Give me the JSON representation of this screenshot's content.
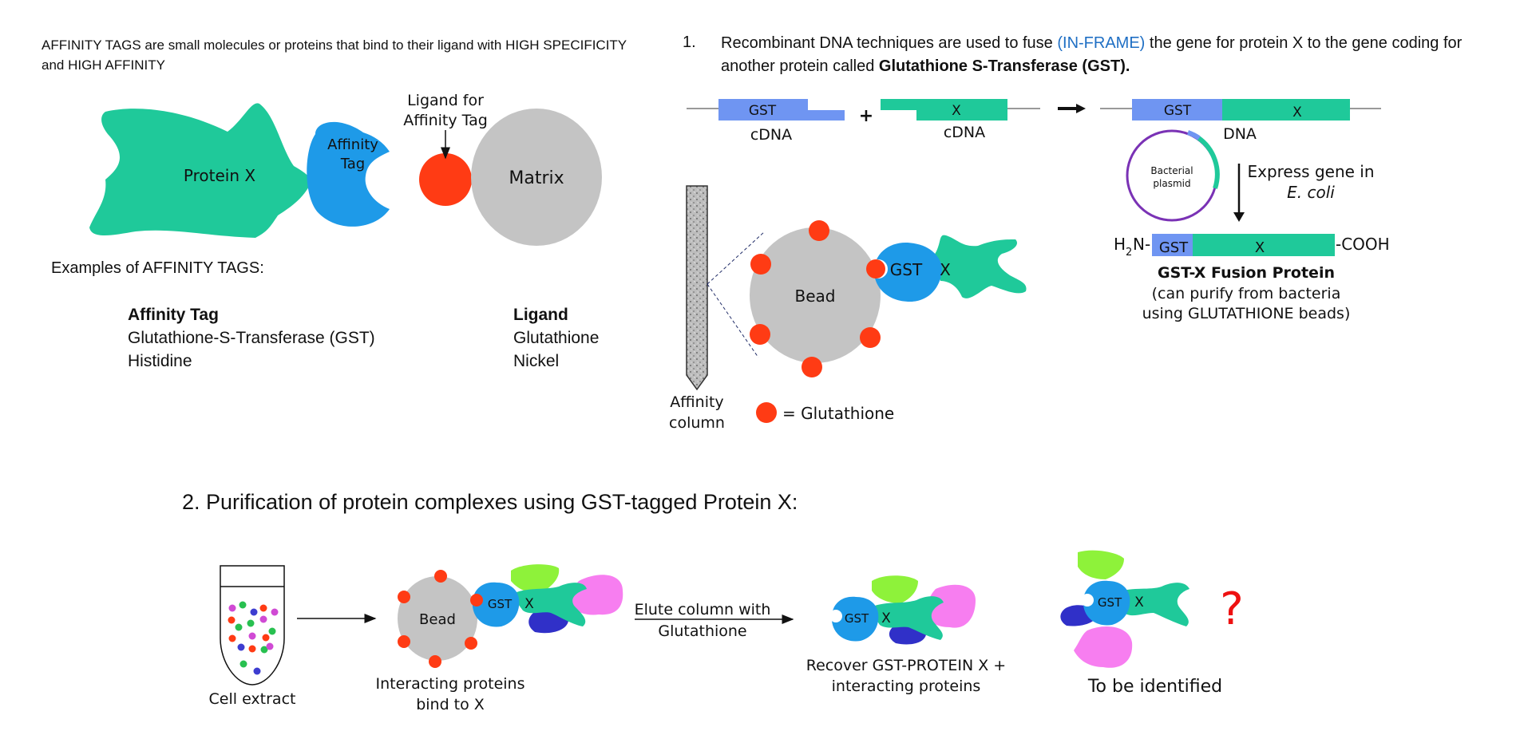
{
  "intro": {
    "text": "AFFINITY TAGS are small molecules or proteins that bind to their ligand with HIGH SPECIFICITY and HIGH AFFINITY"
  },
  "top_diagram": {
    "protein_label": "Protein X",
    "tag_label_1": "Affinity",
    "tag_label_2": "Tag",
    "ligand_label_1": "Ligand for",
    "ligand_label_2": "Affinity Tag",
    "matrix_label": "Matrix"
  },
  "examples": {
    "heading": "Examples of AFFINITY TAGS:",
    "tag_header": "Affinity Tag",
    "ligand_header": "Ligand",
    "rows": [
      {
        "tag": "Glutathione-S-Transferase (GST)",
        "ligand": "Glutathione"
      },
      {
        "tag": "Histidine",
        "ligand": "Nickel"
      }
    ]
  },
  "step1": {
    "number": "1.",
    "text_before": "Recombinant DNA techniques are used to fuse ",
    "text_highlight": "(IN-FRAME)",
    "text_after": " the gene for protein X to the gene coding for another protein called ",
    "text_bold": "Glutathione S-Transferase (GST).",
    "gst_label": "GST",
    "x_label": "X",
    "cdna_label": "cDNA",
    "plus": "+",
    "dna_label": "DNA",
    "plasmid_1": "Bacterial",
    "plasmid_2": "plasmid",
    "express_1": "Express gene in",
    "express_2": "E. coli",
    "fusion_h": "H",
    "fusion_sub": "2",
    "fusion_n": "N-",
    "fusion_cooh": "-COOH",
    "fusion_title": "GST-X Fusion Protein",
    "fusion_desc_1": "(can purify from bacteria",
    "fusion_desc_2": "using GLUTATHIONE beads)",
    "bead_label": "Bead",
    "column_label_1": "Affinity",
    "column_label_2": "column",
    "legend_label": "= Glutathione"
  },
  "step2": {
    "title": "2. Purification of protein complexes using GST-tagged Protein X:",
    "cell_extract": "Cell extract",
    "bead_label": "Bead",
    "gst_label": "GST",
    "x_label": "X",
    "interacting_1": "Interacting proteins",
    "interacting_2": "bind to X",
    "elute_1": "Elute column with",
    "elute_2": "Glutathione",
    "recover_1": "Recover GST-PROTEIN X +",
    "recover_2": "interacting proteins",
    "question": "?",
    "identified": "To be identified"
  },
  "colors": {
    "protein_green": "#1fc99a",
    "tag_blue": "#1e9ae8",
    "ligand_red": "#ff3b14",
    "matrix_gray": "#c4c4c4",
    "gst_bar": "#6f95f2",
    "plasmid_purple": "#7a32b5",
    "lime": "#8ef23a",
    "pink": "#f77ef0",
    "navy": "#3030c8",
    "question_red": "#ee1111"
  }
}
